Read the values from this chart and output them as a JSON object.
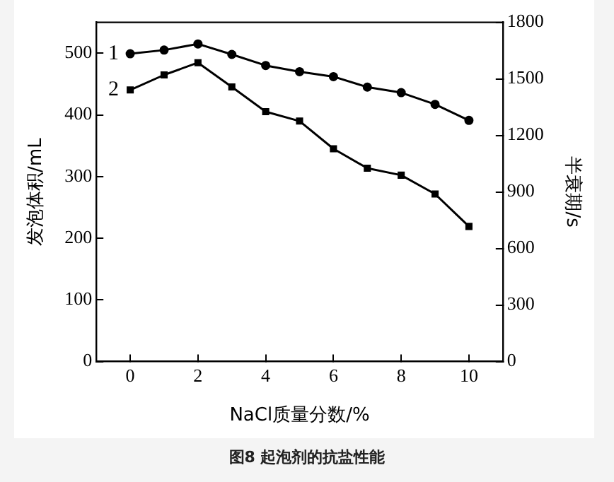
{
  "chart_data": {
    "type": "line",
    "xlabel": "NaCl质量分数/%",
    "ylabel": "发泡体积/mL",
    "y2label": "半衰期/s",
    "x": [
      0,
      1,
      2,
      3,
      4,
      5,
      6,
      7,
      8,
      9,
      10
    ],
    "series": [
      {
        "color": "#000000",
        "marker": "circle",
        "values": [
          499,
          505,
          515,
          498,
          480,
          470,
          462,
          445,
          436,
          417,
          391
        ]
      },
      {
        "color": "#000000",
        "marker": "square",
        "axis": "y2",
        "values": [
          1441,
          1521,
          1586,
          1457,
          1326,
          1276,
          1129,
          1026,
          989,
          889,
          717
        ]
      }
    ],
    "xlim": [
      -1,
      11
    ],
    "xticks": [
      0,
      2,
      4,
      6,
      8,
      10
    ],
    "ylim": [
      0,
      550
    ],
    "yticks": [
      0,
      100,
      200,
      300,
      400,
      500
    ],
    "y2lim": [
      0,
      1800
    ],
    "y2ticks": [
      0,
      300,
      600,
      900,
      1200,
      1500,
      1800
    ],
    "grid": false,
    "legend": false,
    "line_style": "solid",
    "annotations": [
      {
        "text": "1",
        "x": 0,
        "y": 499
      },
      {
        "text": "2",
        "x": 0,
        "y": 440
      },
      "图8  起泡剂的抗盐性能"
    ]
  }
}
